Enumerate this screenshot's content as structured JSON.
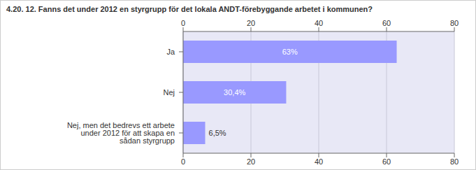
{
  "chart_data": {
    "type": "bar",
    "title": "4.20. 12. Fanns det under 2012 en styrgrupp för det lokala ANDT-förebyggande arbetet i kommunen?",
    "orientation": "horizontal",
    "categories": [
      "Ja",
      "Nej",
      "Nej, men det bedrevs ett arbete under 2012 för att skapa en sådan styrgrupp"
    ],
    "values": [
      63,
      30.4,
      6.5
    ],
    "value_labels": [
      "63%",
      "30,4%",
      "6,5%"
    ],
    "data_labels": true,
    "color": "#9999ff",
    "xlim": [
      0,
      80
    ],
    "xticks": [
      0,
      20,
      40,
      60,
      80
    ],
    "grid": true
  }
}
